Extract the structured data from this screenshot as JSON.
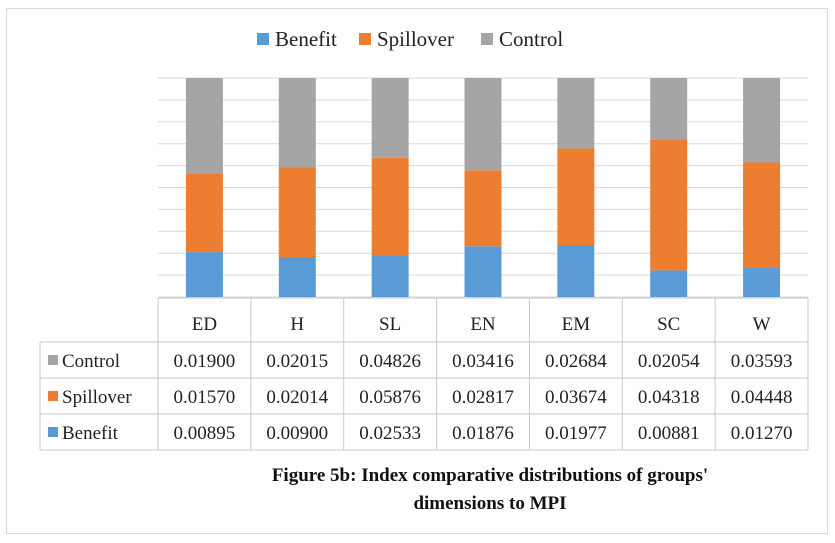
{
  "chart_data": {
    "type": "bar",
    "stacked": true,
    "normalized_percent": true,
    "categories": [
      "ED",
      "H",
      "SL",
      "EN",
      "EM",
      "SC",
      "W"
    ],
    "series": [
      {
        "name": "Benefit",
        "color": "#5b9bd5",
        "values": [
          "0.00895",
          "0.00900",
          "0.02533",
          "0.01876",
          "0.01977",
          "0.00881",
          "0.01270"
        ]
      },
      {
        "name": "Spillover",
        "color": "#ed7d31",
        "values": [
          "0.01570",
          "0.02014",
          "0.05876",
          "0.02817",
          "0.03674",
          "0.04318",
          "0.04448"
        ]
      },
      {
        "name": "Control",
        "color": "#a5a5a5",
        "values": [
          "0.01900",
          "0.02015",
          "0.04826",
          "0.03416",
          "0.02684",
          "0.02054",
          "0.03593"
        ]
      }
    ],
    "legend_order": [
      "Benefit",
      "Spillover",
      "Control"
    ],
    "legend_position": "top",
    "table_row_order": [
      "Control",
      "Spillover",
      "Benefit"
    ],
    "grid": true,
    "title": "",
    "xlabel": "",
    "ylabel": ""
  },
  "caption": {
    "line1": "Figure 5b: Index comparative distributions of groups'",
    "line2": "dimensions to MPI"
  }
}
